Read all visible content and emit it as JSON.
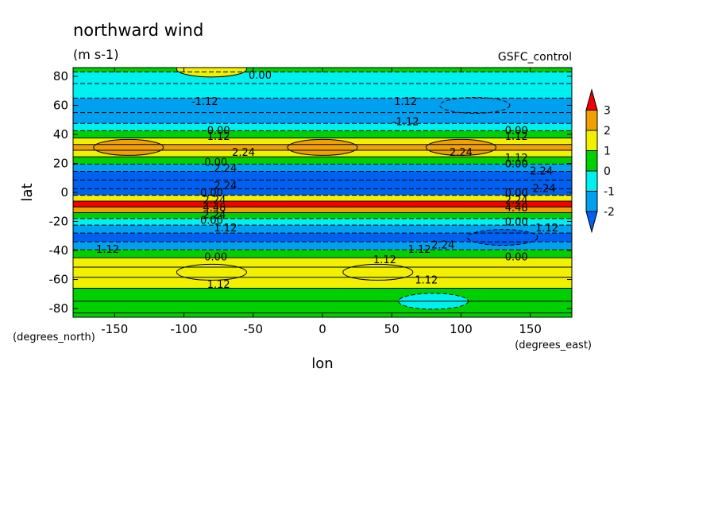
{
  "chart_data": {
    "type": "heatmap",
    "title": "northward wind",
    "units": "(m s-1)",
    "run_label": "GSFC_control",
    "xlabel": "lon",
    "ylabel": "lat",
    "x_unit_label": "(degrees_east)",
    "y_unit_label": "(degrees_north)",
    "xlim": [
      -180,
      180
    ],
    "ylim": [
      -86,
      86
    ],
    "x_ticks": [
      -150,
      -100,
      -50,
      0,
      50,
      100,
      150
    ],
    "y_ticks": [
      80,
      60,
      40,
      20,
      0,
      -20,
      -40,
      -60,
      -80
    ],
    "x_tick_labels": [
      "-150",
      "-100",
      "-50",
      "0",
      "50",
      "100",
      "150"
    ],
    "y_tick_labels": [
      "80",
      "60",
      "40",
      "20",
      "0",
      "-20",
      "-40",
      "-60",
      "-80"
    ],
    "levels": [
      -2,
      -1,
      0,
      1,
      2,
      3
    ],
    "colorbar": {
      "tick_labels": [
        "3",
        "2",
        "1",
        "0",
        "-1",
        "-2"
      ],
      "bins": [
        {
          "range": "> 3",
          "color": "#f00000"
        },
        {
          "range": "2 to 3",
          "color": "#f0a000"
        },
        {
          "range": "1 to 2",
          "color": "#f0f000"
        },
        {
          "range": "0 to 1",
          "color": "#00d000"
        },
        {
          "range": "-1 to 0",
          "color": "#00f0f0"
        },
        {
          "range": "-2 to -1",
          "color": "#00a0f0"
        },
        {
          "range": "< -2",
          "color": "#0060f0"
        }
      ]
    },
    "zonal_profile": [
      {
        "lat": 86,
        "value": 0.5
      },
      {
        "lat": 80,
        "value": -0.2
      },
      {
        "lat": 70,
        "value": -0.8
      },
      {
        "lat": 60,
        "value": -1.2
      },
      {
        "lat": 50,
        "value": -1.3
      },
      {
        "lat": 45,
        "value": -0.6
      },
      {
        "lat": 40,
        "value": 0.3
      },
      {
        "lat": 35,
        "value": 1.4
      },
      {
        "lat": 31,
        "value": 2.3
      },
      {
        "lat": 27,
        "value": 1.5
      },
      {
        "lat": 22,
        "value": 0.2
      },
      {
        "lat": 17,
        "value": -1.5
      },
      {
        "lat": 12,
        "value": -2.5
      },
      {
        "lat": 5,
        "value": -2.5
      },
      {
        "lat": 0,
        "value": -3.5
      },
      {
        "lat": -4,
        "value": 1.0
      },
      {
        "lat": -8,
        "value": 4.0
      },
      {
        "lat": -12,
        "value": 2.5
      },
      {
        "lat": -16,
        "value": 0.5
      },
      {
        "lat": -20,
        "value": -1.0
      },
      {
        "lat": -25,
        "value": -1.6
      },
      {
        "lat": -31,
        "value": -2.3
      },
      {
        "lat": -37,
        "value": -1.5
      },
      {
        "lat": -42,
        "value": 0.2
      },
      {
        "lat": -48,
        "value": 1.0
      },
      {
        "lat": -55,
        "value": 1.4
      },
      {
        "lat": -62,
        "value": 1.0
      },
      {
        "lat": -70,
        "value": 0.5
      },
      {
        "lat": -80,
        "value": 0.5
      },
      {
        "lat": -86,
        "value": 0.5
      }
    ],
    "highlighted_cells": [
      {
        "lon": -140,
        "lat": 31,
        "value": 2.3
      },
      {
        "lon": 0,
        "lat": 31,
        "value": 2.0
      },
      {
        "lon": 100,
        "lat": 31,
        "value": 2.3
      },
      {
        "lon": 130,
        "lat": -31,
        "value": -2.3
      },
      {
        "lon": -80,
        "lat": -55,
        "value": 1.6
      },
      {
        "lon": 40,
        "lat": -55,
        "value": 1.6
      },
      {
        "lon": 80,
        "lat": -75,
        "value": -0.3
      },
      {
        "lon": 110,
        "lat": 60,
        "value": -1.3
      },
      {
        "lon": -80,
        "lat": 85,
        "value": 1.0
      }
    ],
    "contour_labels": [
      {
        "text": "0.00",
        "lon": -45,
        "lat": 81
      },
      {
        "text": "-1.12",
        "lon": -85,
        "lat": 63
      },
      {
        "text": "1.12",
        "lon": 60,
        "lat": 63
      },
      {
        "text": "-1.12",
        "lon": 60,
        "lat": 49
      },
      {
        "text": "0.00",
        "lon": -75,
        "lat": 43
      },
      {
        "text": "1.12",
        "lon": -75,
        "lat": 39
      },
      {
        "text": "0.00",
        "lon": 140,
        "lat": 43
      },
      {
        "text": "1.12",
        "lon": 140,
        "lat": 39
      },
      {
        "text": "2.24",
        "lon": -57,
        "lat": 28
      },
      {
        "text": "2.24",
        "lon": 100,
        "lat": 28
      },
      {
        "text": "0.00",
        "lon": -77,
        "lat": 21
      },
      {
        "text": "2.24",
        "lon": -70,
        "lat": 17
      },
      {
        "text": "1.12",
        "lon": 140,
        "lat": 24
      },
      {
        "text": "0.00",
        "lon": 140,
        "lat": 20
      },
      {
        "text": "2.24",
        "lon": 158,
        "lat": 15
      },
      {
        "text": "2.24",
        "lon": -70,
        "lat": 5
      },
      {
        "text": "0.00",
        "lon": -80,
        "lat": 0
      },
      {
        "text": "2.24",
        "lon": 160,
        "lat": 3
      },
      {
        "text": "0.00",
        "lon": 140,
        "lat": 0
      },
      {
        "text": "2.24",
        "lon": -78,
        "lat": -5
      },
      {
        "text": "4.48",
        "lon": -78,
        "lat": -10
      },
      {
        "text": "2.24",
        "lon": -78,
        "lat": -15
      },
      {
        "text": "0.00",
        "lon": -80,
        "lat": -19
      },
      {
        "text": "1.12",
        "lon": -70,
        "lat": -24
      },
      {
        "text": "2.24",
        "lon": 140,
        "lat": -5
      },
      {
        "text": "4.48",
        "lon": 140,
        "lat": -10
      },
      {
        "text": "0.00",
        "lon": 140,
        "lat": -20
      },
      {
        "text": "1.12",
        "lon": 162,
        "lat": -24
      },
      {
        "text": "1.12",
        "lon": -155,
        "lat": -39
      },
      {
        "text": "1.12",
        "lon": 70,
        "lat": -39
      },
      {
        "text": "2.24",
        "lon": 87,
        "lat": -36
      },
      {
        "text": "1.12",
        "lon": 45,
        "lat": -46
      },
      {
        "text": "0.00",
        "lon": -77,
        "lat": -44
      },
      {
        "text": "0.00",
        "lon": 140,
        "lat": -44
      },
      {
        "text": "1.12",
        "lon": -75,
        "lat": -63
      },
      {
        "text": "1.12",
        "lon": 75,
        "lat": -60
      }
    ]
  }
}
